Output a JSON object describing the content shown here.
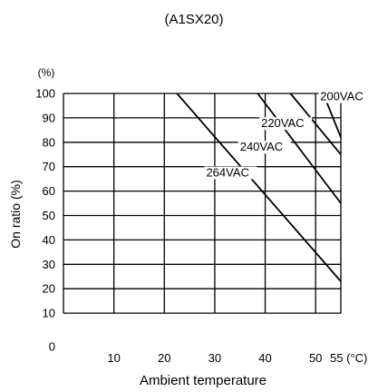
{
  "chart_data": {
    "type": "line",
    "title": "(A1SX20)",
    "xlabel": "Ambient temperature",
    "ylabel": "On ratio (%)",
    "y_unit_label": "(%)",
    "x_unit_label": "(°C)",
    "xlim": [
      0,
      55
    ],
    "ylim": [
      0,
      100
    ],
    "grid": true,
    "x_ticks": [
      {
        "value": 10,
        "label": "10"
      },
      {
        "value": 20,
        "label": "20"
      },
      {
        "value": 30,
        "label": "30"
      },
      {
        "value": 40,
        "label": "40"
      },
      {
        "value": 50,
        "label": "50"
      },
      {
        "value": 55,
        "label": "55 (°C)"
      }
    ],
    "y_ticks": [
      {
        "value": 0,
        "label": "0"
      },
      {
        "value": 10,
        "label": "10"
      },
      {
        "value": 20,
        "label": "20"
      },
      {
        "value": 30,
        "label": "30"
      },
      {
        "value": 40,
        "label": "40"
      },
      {
        "value": 50,
        "label": "50"
      },
      {
        "value": 60,
        "label": "60"
      },
      {
        "value": 70,
        "label": "70"
      },
      {
        "value": 80,
        "label": "80"
      },
      {
        "value": 90,
        "label": "90"
      },
      {
        "value": 100,
        "label": "100"
      }
    ],
    "series": [
      {
        "name": "200VAC",
        "x": [
          51.5,
          55
        ],
        "y": [
          100,
          82
        ]
      },
      {
        "name": "220VAC",
        "x": [
          45,
          55
        ],
        "y": [
          100,
          75
        ]
      },
      {
        "name": "240VAC",
        "x": [
          38.5,
          55
        ],
        "y": [
          100,
          55
        ]
      },
      {
        "name": "264VAC",
        "x": [
          22.5,
          55
        ],
        "y": [
          100,
          23
        ]
      }
    ],
    "line_color": "#000000"
  }
}
